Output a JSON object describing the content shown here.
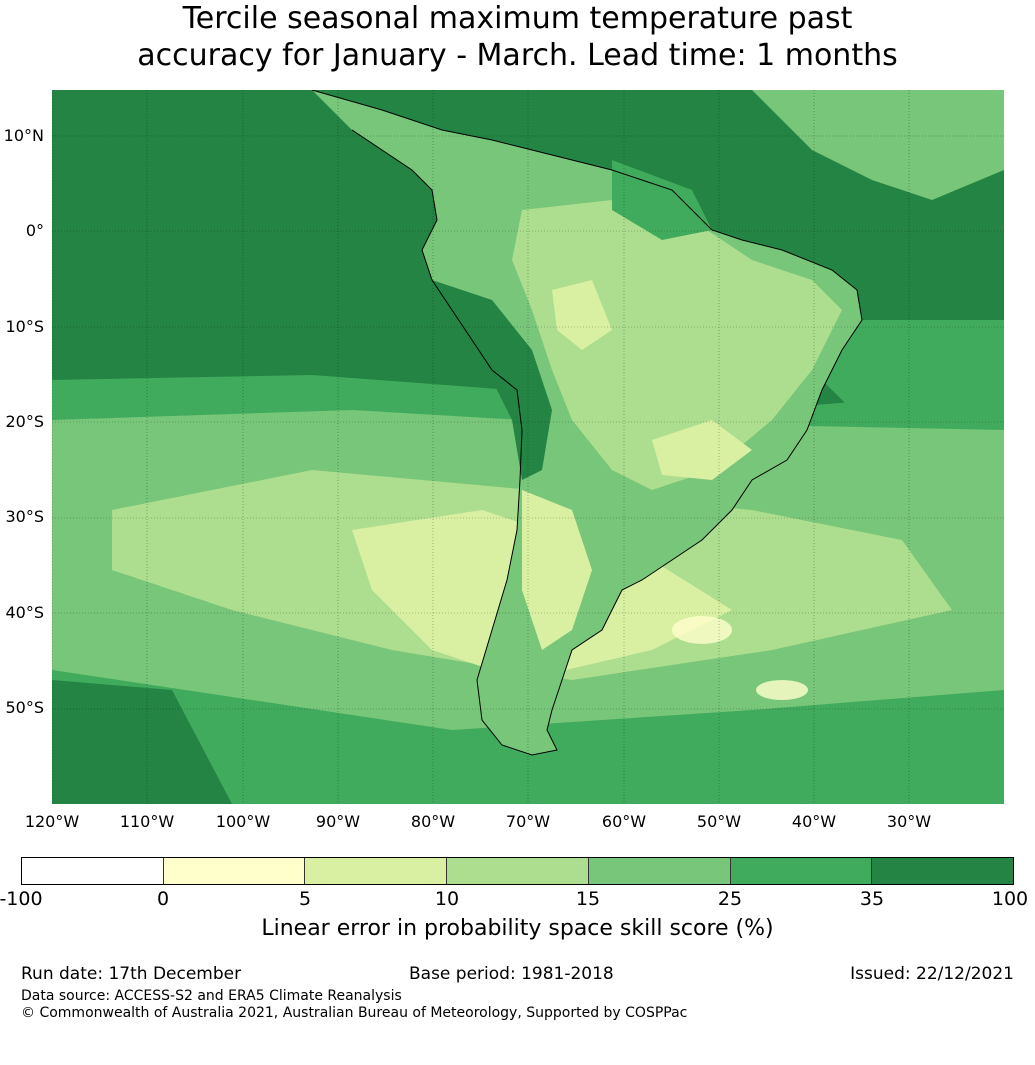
{
  "title": {
    "line1": "Tercile seasonal maximum temperature past",
    "line2": "accuracy for January - March. Lead time: 1 months"
  },
  "map": {
    "latitude_labels": [
      "10°N",
      "0°",
      "10°S",
      "20°S",
      "30°S",
      "40°S",
      "50°S"
    ],
    "longitude_labels": [
      "120°W",
      "110°W",
      "100°W",
      "90°W",
      "80°W",
      "70°W",
      "60°W",
      "50°W",
      "40°W",
      "30°W"
    ],
    "colors": {
      "ocean_dark": "#238443",
      "mid": "#41ab5d",
      "light": "#78c679",
      "lighter": "#addd8e",
      "pale": "#d9f0a3",
      "palest": "#ffffcc"
    }
  },
  "colorbar": {
    "ticks": [
      "-100",
      "0",
      "5",
      "10",
      "15",
      "25",
      "35",
      "100"
    ],
    "segment_colors": [
      "#ffffff",
      "#ffffcc",
      "#d9f0a3",
      "#addd8e",
      "#78c679",
      "#41ab5d",
      "#238443"
    ],
    "label": "Linear error in probability space skill score (%)"
  },
  "footer": {
    "run_date": "Run date: 17th December",
    "base_period": "Base period: 1981-2018",
    "issued": "Issued: 22/12/2021",
    "data_source": "Data source: ACCESS-S2 and ERA5 Climate Reanalysis",
    "copyright": "© Commonwealth of Australia 2021, Australian Bureau of Meteorology, Supported by COSPPac"
  }
}
